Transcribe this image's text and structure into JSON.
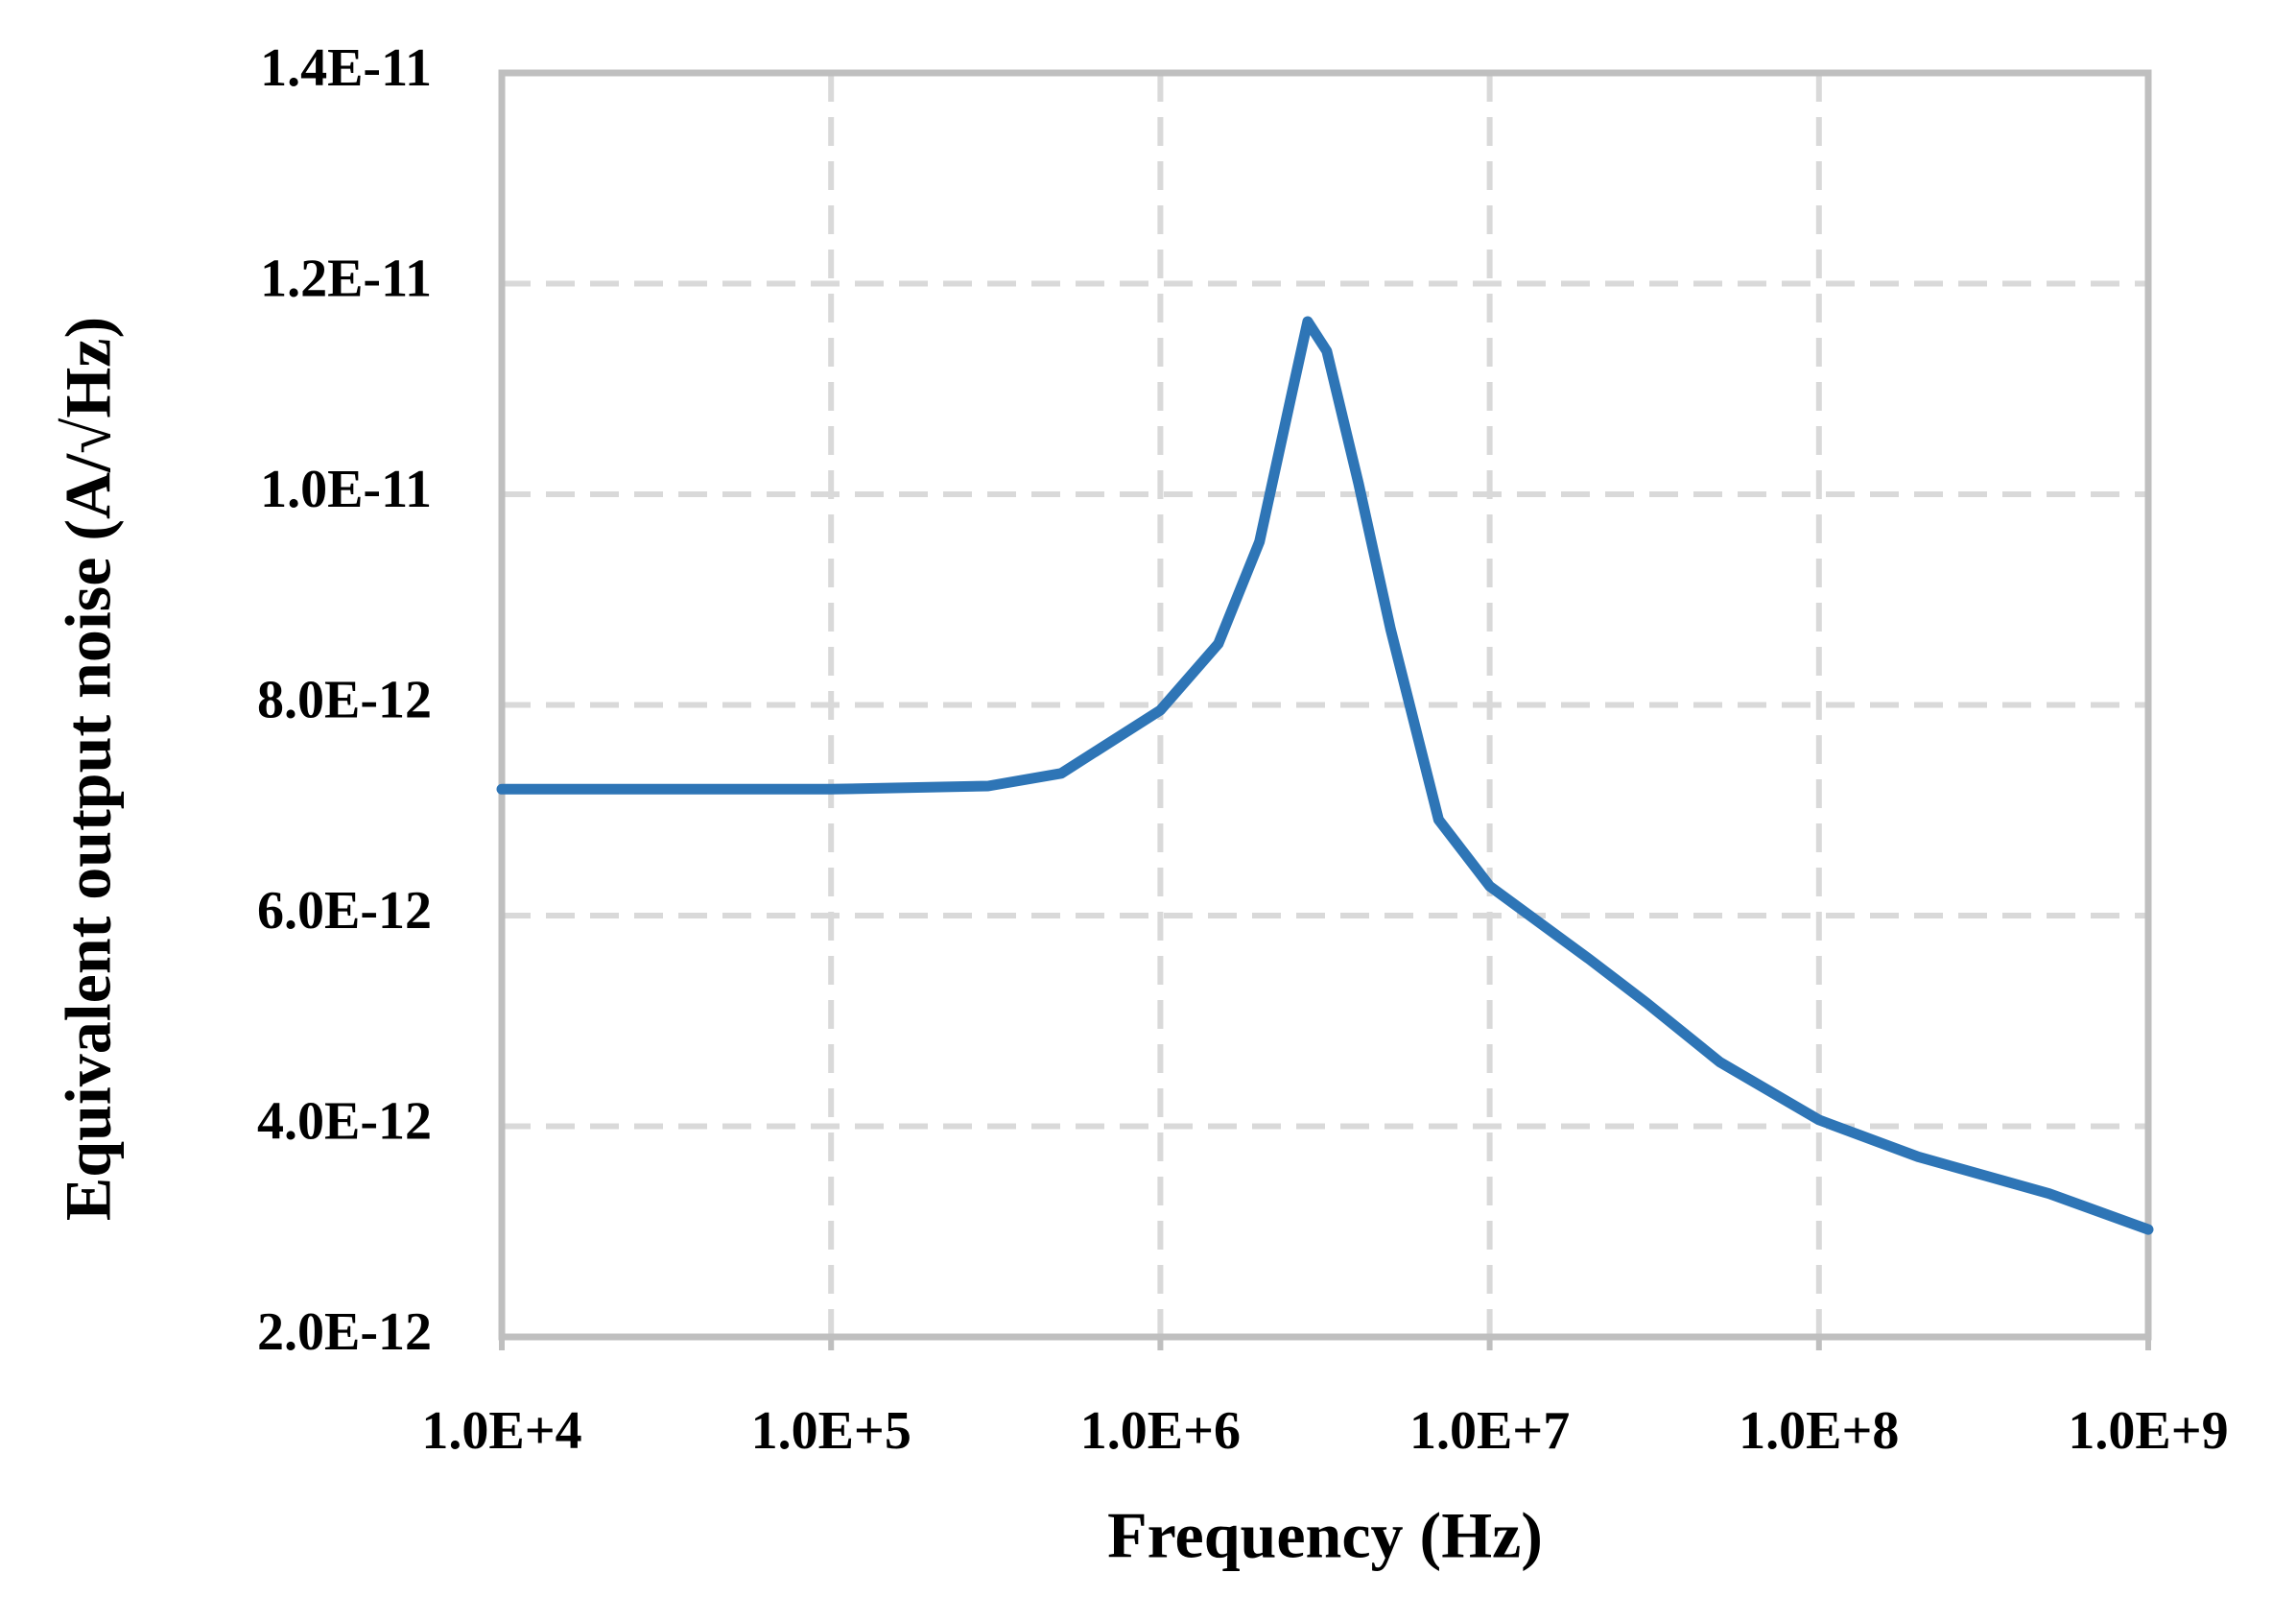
{
  "chart_data": {
    "type": "line",
    "xlabel": "Frequency (Hz)",
    "ylabel": "Equivalent output noise (A/√Hz)",
    "x": [
      10000,
      100000,
      300000,
      500000,
      1000000,
      1500000,
      2000000,
      2500000,
      2800000,
      3200000,
      4000000,
      5000000,
      7000000,
      10000000,
      20000000,
      30000000,
      50000000,
      100000000,
      200000000,
      500000000,
      1000000000
    ],
    "series": [
      {
        "color": "#2e75b6",
        "values": [
          7.2e-12,
          7.2e-12,
          7.23e-12,
          7.35e-12,
          7.95e-12,
          8.58e-12,
          9.55e-12,
          1.094e-11,
          1.164e-11,
          1.136e-11,
          1.01e-11,
          8.72e-12,
          6.91e-12,
          6.28e-12,
          5.59e-12,
          5.17e-12,
          4.61e-12,
          4.06e-12,
          3.71e-12,
          3.36e-12,
          3.02e-12
        ]
      }
    ],
    "xscale": "log",
    "xlim": [
      10000,
      1000000000
    ],
    "xticks": [
      {
        "value": 10000,
        "label": "1.0E+4"
      },
      {
        "value": 100000,
        "label": "1.0E+5"
      },
      {
        "value": 1000000,
        "label": "1.0E+6"
      },
      {
        "value": 10000000,
        "label": "1.0E+7"
      },
      {
        "value": 100000000,
        "label": "1.0E+8"
      },
      {
        "value": 1000000000,
        "label": "1.0E+9"
      }
    ],
    "ylim": [
      2e-12,
      1.4e-11
    ],
    "yticks": [
      {
        "value": 2e-12,
        "label": "2.0E-12"
      },
      {
        "value": 4e-12,
        "label": "4.0E-12"
      },
      {
        "value": 6e-12,
        "label": "6.0E-12"
      },
      {
        "value": 8e-12,
        "label": "8.0E-12"
      },
      {
        "value": 1e-11,
        "label": "1.0E-11"
      },
      {
        "value": 1.2e-11,
        "label": "1.2E-11"
      },
      {
        "value": 1.4e-11,
        "label": "1.4E-11"
      }
    ],
    "grid": true
  }
}
